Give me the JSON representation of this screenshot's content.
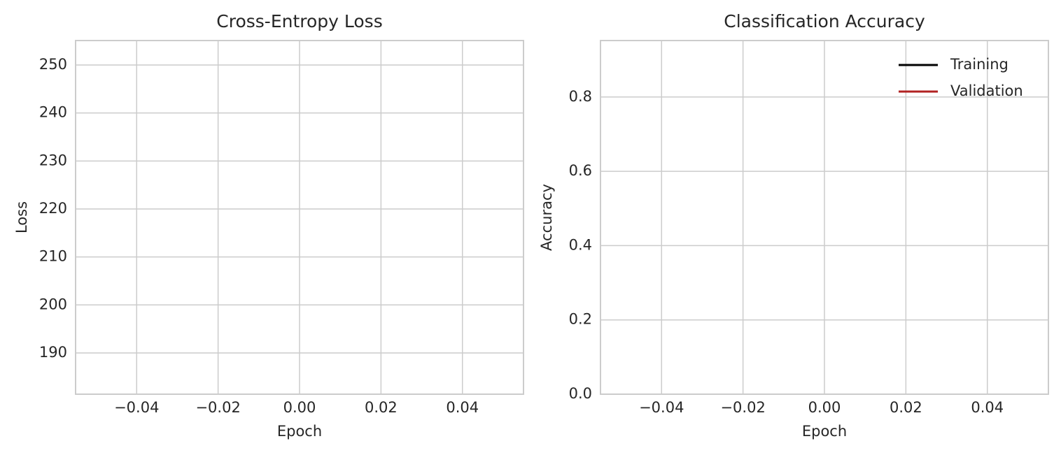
{
  "chart_data": [
    {
      "type": "line",
      "title": "Cross-Entropy Loss",
      "x_label": "Epoch",
      "y_label": "Loss",
      "x": [],
      "series": [],
      "xlim": [
        -0.055,
        0.055
      ],
      "xticks": [
        {
          "value": -0.04,
          "label": "−0.04"
        },
        {
          "value": -0.02,
          "label": "−0.02"
        },
        {
          "value": 0,
          "label": "0.00"
        },
        0.02,
        0.04
      ],
      "ylim": [
        181.4,
        255.1
      ],
      "yticks": [
        190,
        200,
        210,
        220,
        230,
        240,
        250
      ],
      "grid": true
    },
    {
      "type": "line",
      "title": "Classification Accuracy",
      "x_label": "Epoch",
      "y_label": "Accuracy",
      "x": [],
      "series": [
        {
          "name": "Training",
          "color": "#000000",
          "values": []
        },
        {
          "name": "Validation",
          "color": "#b22222",
          "values": []
        }
      ],
      "xlim": [
        -0.055,
        0.055
      ],
      "xticks": [
        {
          "value": -0.04,
          "label": "−0.04"
        },
        {
          "value": -0.02,
          "label": "−0.02"
        },
        {
          "value": 0,
          "label": "0.00"
        },
        0.02,
        0.04
      ],
      "ylim": [
        0,
        0.952
      ],
      "yticks": [
        {
          "value": 0,
          "label": "0.0"
        },
        0.2,
        0.4,
        0.6,
        0.8
      ],
      "grid": true,
      "legend": "upper-right"
    }
  ]
}
